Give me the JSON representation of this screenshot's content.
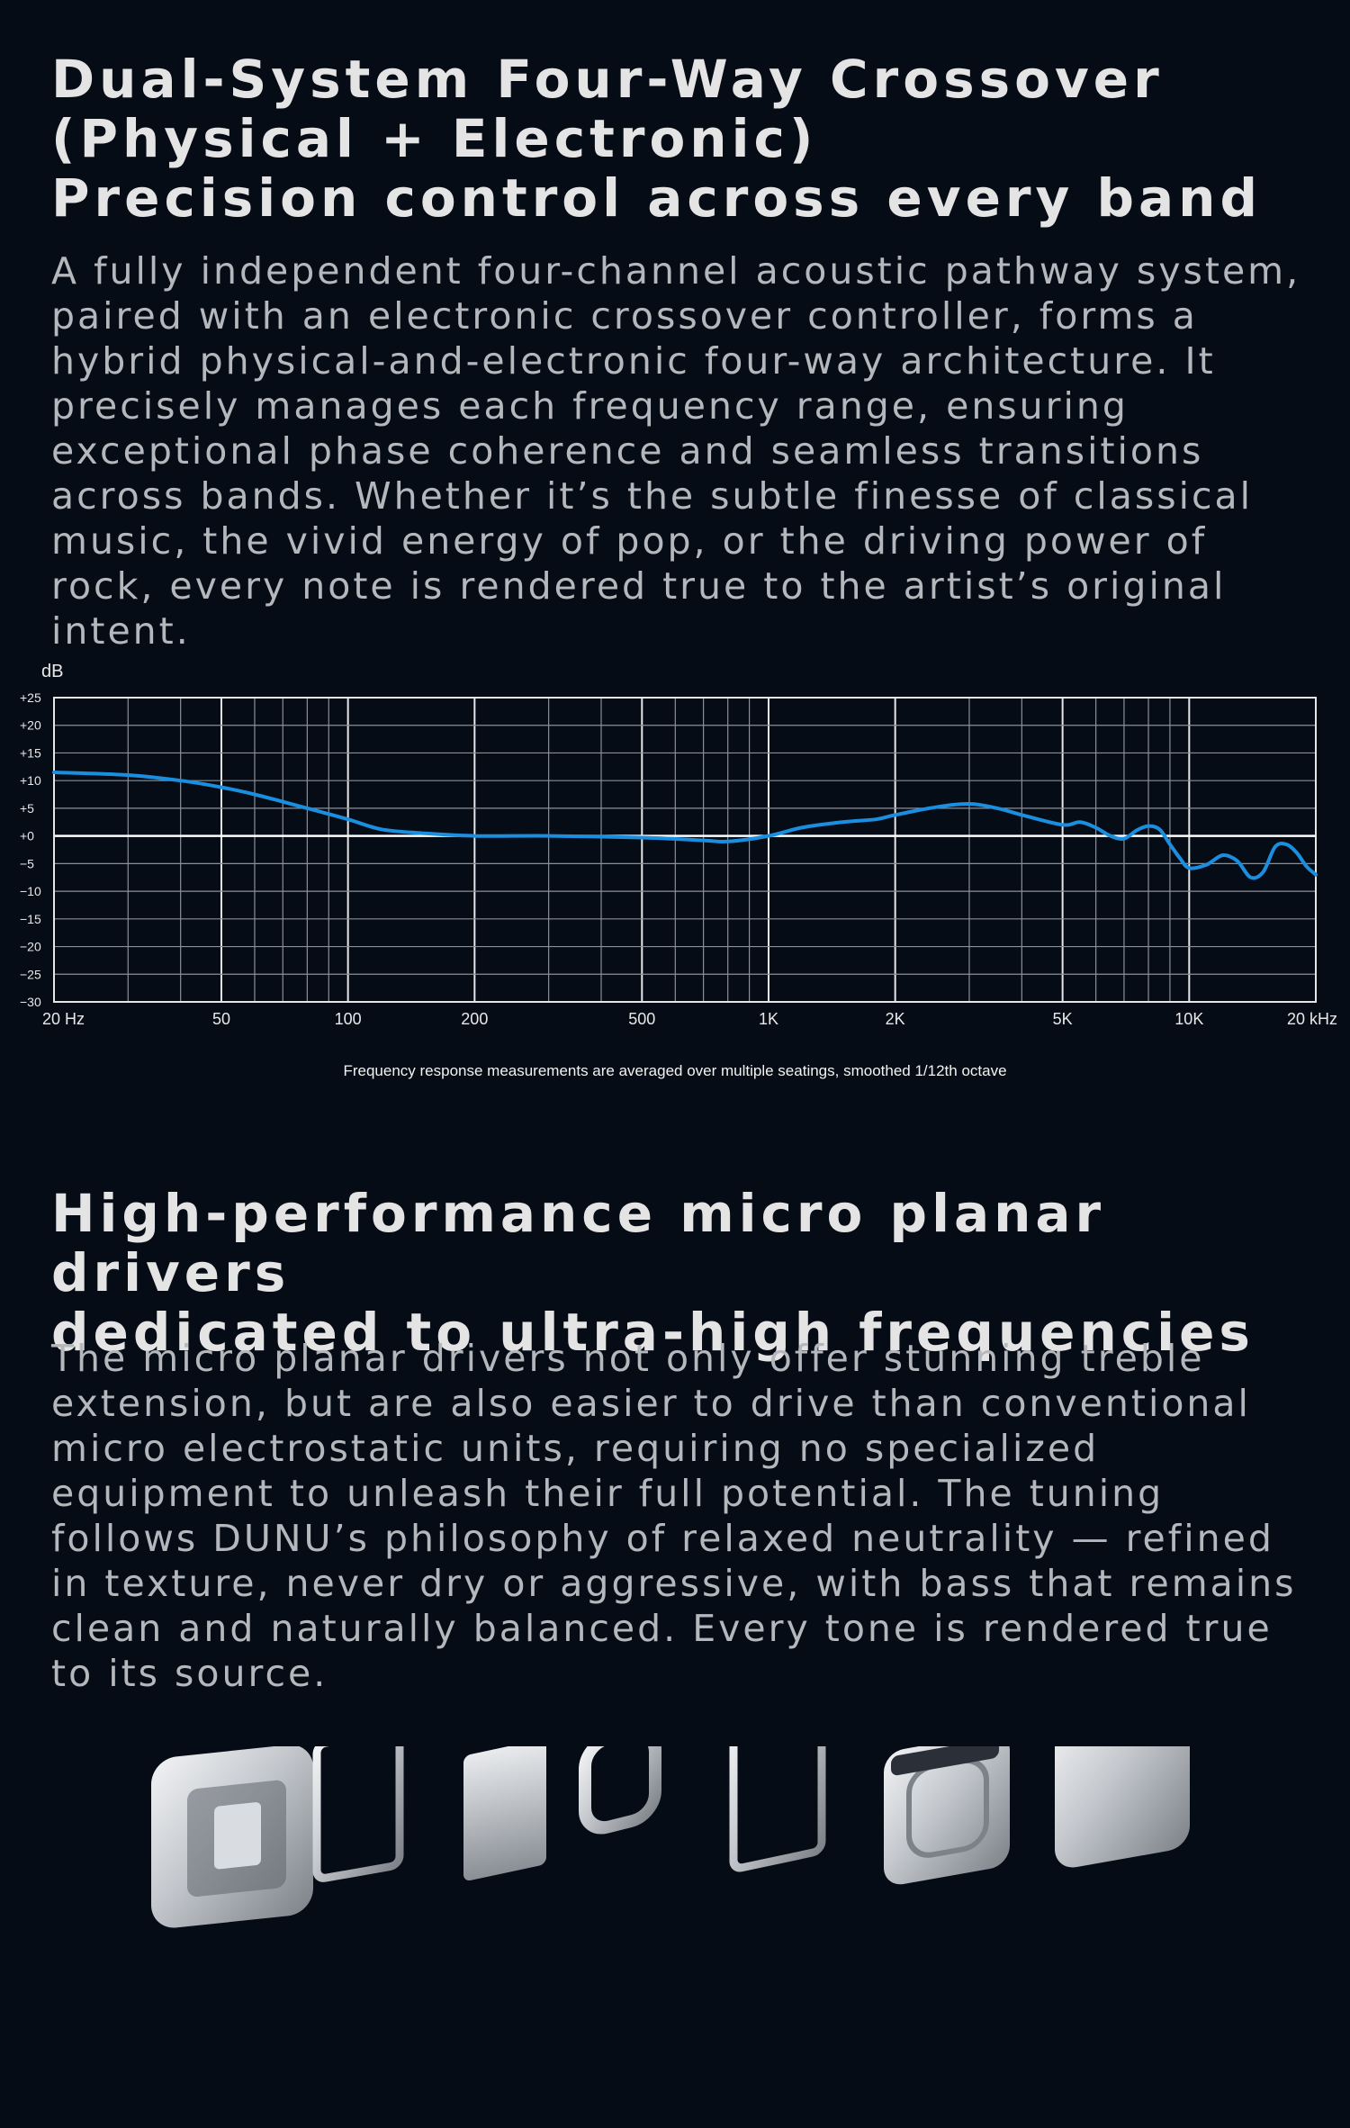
{
  "section1": {
    "title_lines": [
      "Dual-System Four-Way Crossover",
      "(Physical + Electronic)",
      "Precision control across every band"
    ],
    "body_lines": [
      "A fully independent four-channel acoustic pathway system,",
      " paired with an electronic crossover controller, forms a",
      "hybrid physical-and-electronic four-way architecture. It",
      "precisely manages each frequency range, ensuring",
      "exceptional phase coherence and seamless transitions",
      "across bands. Whether it’s the subtle finesse of classical",
      "music, the vivid energy of pop, or the driving power of",
      "rock, every note is rendered true to the artist’s original",
      "intent."
    ]
  },
  "chart_data": {
    "type": "line",
    "ylabel": "dB",
    "xscale": "log",
    "xlim": [
      20,
      20000
    ],
    "ylim": [
      -30,
      25
    ],
    "grid": true,
    "x_tick_values": [
      20,
      50,
      100,
      200,
      500,
      1000,
      2000,
      5000,
      10000,
      20000
    ],
    "x_tick_labels": [
      "20 Hz",
      "50",
      "100",
      "200",
      "500",
      "1K",
      "2K",
      "5K",
      "10K",
      "20 kHz"
    ],
    "y_tick_values": [
      25,
      20,
      15,
      10,
      5,
      0,
      -5,
      -10,
      -15,
      -20,
      -25,
      -30
    ],
    "y_tick_labels": [
      "+25",
      "+20",
      "+15",
      "+10",
      "+5",
      "+0",
      "−5",
      "−10",
      "−15",
      "−20",
      "−25",
      "−30"
    ],
    "caption": "Frequency response measurements are averaged over multiple seatings, smoothed 1/12th octave",
    "line_color": "#1a8fe0",
    "series": [
      {
        "x": [
          20,
          30,
          40,
          50,
          60,
          80,
          100,
          120,
          150,
          200,
          300,
          500,
          700,
          800,
          1000,
          1200,
          1500,
          1800,
          2000,
          2500,
          3000,
          3500,
          4000,
          5000,
          5500,
          6000,
          6500,
          7000,
          7500,
          8000,
          8500,
          9000,
          9500,
          10000,
          11000,
          12000,
          13000,
          14000,
          15000,
          16000,
          17000,
          18000,
          19000,
          20000
        ],
        "y": [
          11.5,
          11,
          10,
          8.8,
          7.5,
          5,
          3,
          1.2,
          0.5,
          0,
          0,
          -0.3,
          -0.8,
          -1,
          0,
          1.5,
          2.5,
          3,
          3.8,
          5.2,
          5.8,
          5,
          3.8,
          2,
          2.5,
          1.5,
          0,
          -0.5,
          1,
          1.8,
          1.2,
          -1.5,
          -4,
          -5.8,
          -5.2,
          -3.5,
          -4.5,
          -7.5,
          -6.5,
          -2,
          -1.5,
          -3,
          -5.5,
          -7
        ]
      }
    ]
  },
  "section2": {
    "title_lines": [
      "High-performance micro planar drivers",
      "dedicated to ultra-high frequencies"
    ],
    "body_lines": [
      "The micro planar drivers not only offer stunning treble",
      "extension, but are also easier to drive than conventional",
      "micro electrostatic units, requiring no specialized",
      "equipment to unleash their full potential. The tuning",
      "follows DUNU’s philosophy of relaxed neutrality — refined",
      "in texture, never dry or aggressive, with bass that remains",
      "clean and naturally balanced. Every tone is rendered true",
      "to its source."
    ]
  },
  "drivers_illustration": {
    "parts": [
      "housing",
      "frame",
      "diaphragm",
      "ring",
      "frame",
      "magnet-cover",
      "shell"
    ],
    "color": "#c8ccd1"
  }
}
